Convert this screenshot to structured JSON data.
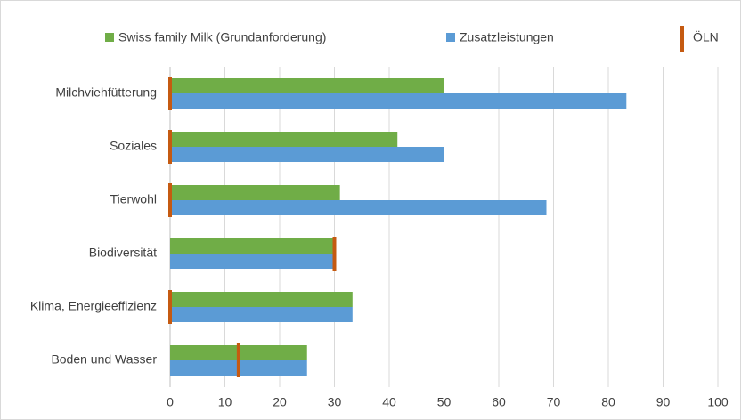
{
  "chart_data": {
    "type": "hbar",
    "categories": [
      "Milchviehfütterung",
      "Soziales",
      "Tierwohl",
      "Biodiversität",
      "Klima, Energieeffizienz",
      "Boden und Wasser"
    ],
    "series": [
      {
        "name": "Swiss family Milk (Grundanforderung)",
        "color": "#70ad47",
        "values": [
          50,
          41.5,
          31,
          30,
          33.3,
          25
        ]
      },
      {
        "name": "Zusatzleistungen",
        "color": "#5b9bd5",
        "values": [
          83.3,
          50,
          68.7,
          30,
          33.3,
          25
        ]
      },
      {
        "name": "ÖLN",
        "color": "#c55a11",
        "style": "marker",
        "values": [
          0,
          0,
          0,
          30,
          0,
          12.5
        ]
      }
    ],
    "xlim": [
      0,
      100
    ],
    "xticks": [
      0,
      10,
      20,
      30,
      40,
      50,
      60,
      70,
      80,
      90,
      100
    ],
    "grid": true,
    "legend": "top"
  }
}
